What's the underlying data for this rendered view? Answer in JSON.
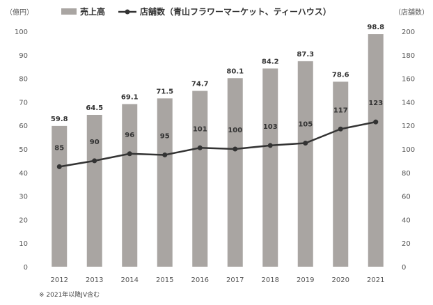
{
  "chart_data": {
    "type": "bar+line",
    "categories": [
      "2012",
      "2013",
      "2014",
      "2015",
      "2016",
      "2017",
      "2018",
      "2019",
      "2020",
      "2021"
    ],
    "series": [
      {
        "name": "売上高",
        "kind": "bar",
        "axis": "left",
        "values": [
          59.8,
          64.5,
          69.1,
          71.5,
          74.7,
          80.1,
          84.2,
          87.3,
          78.6,
          98.8
        ],
        "labels": [
          "59.8",
          "64.5",
          "69.1",
          "71.5",
          "74.7",
          "80.1",
          "84.2",
          "87.3",
          "78.6",
          "98.8"
        ],
        "color": "#a9a5a2"
      },
      {
        "name": "店舗数（青山フラワーマーケット、ティーハウス）",
        "kind": "line",
        "axis": "right",
        "values": [
          85,
          90,
          96,
          95,
          101,
          100,
          103,
          105,
          117,
          123
        ],
        "labels": [
          "85",
          "90",
          "96",
          "95",
          "101",
          "100",
          "103",
          "105",
          "117",
          "123"
        ],
        "color": "#333333"
      }
    ],
    "y_left": {
      "unit": "（億円）",
      "min": 0,
      "max": 100,
      "step": 10,
      "ticks": [
        "0",
        "10",
        "20",
        "30",
        "40",
        "50",
        "60",
        "70",
        "80",
        "90",
        "100"
      ]
    },
    "y_right": {
      "unit": "（店舗数）",
      "min": 0,
      "max": 200,
      "step": 20,
      "ticks": [
        "0",
        "20",
        "40",
        "60",
        "80",
        "100",
        "120",
        "140",
        "160",
        "180",
        "200"
      ]
    },
    "grid": false,
    "legend_position": "top"
  },
  "note": "※ 2021年以降JV含む"
}
